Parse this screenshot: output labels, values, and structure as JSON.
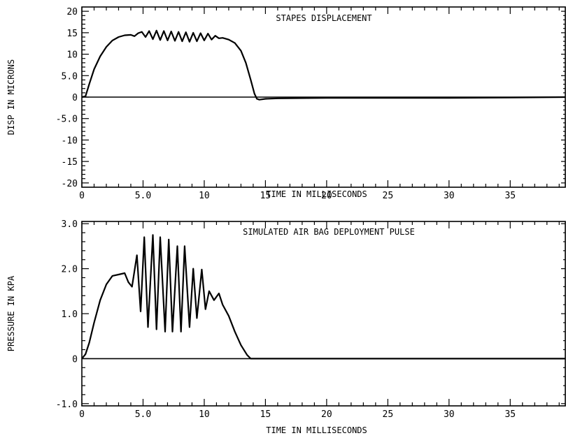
{
  "chart_data": [
    {
      "type": "line",
      "title": "STAPES DISPLACEMENT",
      "xlabel": "TIME IN MILLISECONDS",
      "ylabel": "DISP IN MICRONS",
      "xlim": [
        0,
        39.5
      ],
      "ylim": [
        -21,
        21
      ],
      "x_ticks": [
        0,
        5,
        10,
        15,
        20,
        25,
        30,
        35
      ],
      "x_tick_labels": [
        "0",
        "5.0",
        "10",
        "15",
        "20",
        "25",
        "30",
        "35"
      ],
      "y_ticks": [
        20,
        15,
        10,
        5,
        0,
        -5,
        -10,
        -15,
        -20
      ],
      "y_tick_labels": [
        "20",
        "15",
        "10",
        "5.0",
        "0",
        "-5.0",
        "-10",
        "-15",
        "-20"
      ],
      "grid": false,
      "series": [
        {
          "x": [
            0,
            0.3,
            0.6,
            1.0,
            1.5,
            2.0,
            2.5,
            3.0,
            3.5,
            4.0,
            4.3,
            4.6,
            4.9,
            5.2,
            5.5,
            5.8,
            6.1,
            6.4,
            6.7,
            7.0,
            7.3,
            7.6,
            7.9,
            8.2,
            8.5,
            8.8,
            9.1,
            9.4,
            9.7,
            10.0,
            10.3,
            10.6,
            10.9,
            11.2,
            11.5,
            12.0,
            12.5,
            13.0,
            13.4,
            13.8,
            14.1,
            14.3,
            14.5,
            15.0,
            16.0,
            20.0,
            25.0,
            30.0,
            35.0,
            39.5
          ],
          "y": [
            0,
            0.2,
            3.0,
            6.5,
            9.5,
            11.7,
            13.2,
            14.0,
            14.4,
            14.5,
            14.2,
            14.9,
            15.2,
            14.0,
            15.4,
            13.5,
            15.5,
            13.3,
            15.4,
            13.2,
            15.3,
            13.1,
            15.2,
            13.0,
            15.1,
            12.9,
            15.0,
            13.0,
            14.9,
            13.2,
            14.8,
            13.4,
            14.3,
            13.7,
            13.8,
            13.4,
            12.6,
            10.8,
            8.0,
            4.0,
            0.8,
            -0.4,
            -0.6,
            -0.4,
            -0.3,
            -0.2,
            -0.2,
            -0.2,
            -0.1,
            0
          ]
        }
      ]
    },
    {
      "type": "line",
      "title": "SIMULATED AIR BAG DEPLOYMENT PULSE",
      "xlabel": "TIME IN MILLISECONDS",
      "ylabel": "PRESSURE IN KPA",
      "xlim": [
        0,
        39.5
      ],
      "ylim": [
        -1.05,
        3.05
      ],
      "x_ticks": [
        0,
        5,
        10,
        15,
        20,
        25,
        30,
        35
      ],
      "x_tick_labels": [
        "0",
        "5.0",
        "10",
        "15",
        "20",
        "25",
        "30",
        "35"
      ],
      "y_ticks": [
        3.0,
        2.0,
        1.0,
        0,
        -1.0
      ],
      "y_tick_labels": [
        "3.0",
        "2.0",
        "1.0",
        "0",
        "-1.0"
      ],
      "grid": false,
      "series": [
        {
          "x": [
            0,
            0.3,
            0.6,
            1.0,
            1.5,
            2.0,
            2.5,
            3.0,
            3.5,
            3.8,
            4.1,
            4.5,
            4.8,
            5.1,
            5.4,
            5.8,
            6.1,
            6.4,
            6.8,
            7.1,
            7.4,
            7.8,
            8.1,
            8.4,
            8.8,
            9.1,
            9.4,
            9.8,
            10.1,
            10.4,
            10.8,
            11.2,
            11.5,
            12.0,
            12.5,
            13.0,
            13.5,
            13.8,
            14.0,
            39.5
          ],
          "y": [
            0,
            0.1,
            0.35,
            0.8,
            1.3,
            1.65,
            1.84,
            1.87,
            1.9,
            1.7,
            1.6,
            2.3,
            1.05,
            2.7,
            0.7,
            2.75,
            0.65,
            2.7,
            0.6,
            2.65,
            0.6,
            2.5,
            0.6,
            2.5,
            0.7,
            2.0,
            0.9,
            1.98,
            1.1,
            1.5,
            1.3,
            1.45,
            1.2,
            0.95,
            0.6,
            0.3,
            0.08,
            0.0,
            0.0,
            0.0
          ]
        }
      ]
    }
  ]
}
